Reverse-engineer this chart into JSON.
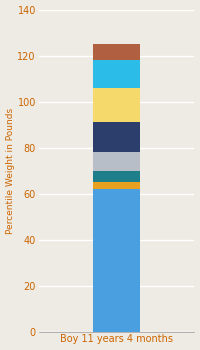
{
  "categories": [
    "Boy 11 years 4 months"
  ],
  "segments": [
    {
      "value": 62,
      "color": "#4A9FE0"
    },
    {
      "value": 3,
      "color": "#E8A020"
    },
    {
      "value": 5,
      "color": "#1E7F8A"
    },
    {
      "value": 8,
      "color": "#B8BEC8"
    },
    {
      "value": 13,
      "color": "#2C3E6B"
    },
    {
      "value": 15,
      "color": "#F5D96B"
    },
    {
      "value": 12,
      "color": "#2BBCE8"
    },
    {
      "value": 7,
      "color": "#B06040"
    }
  ],
  "ylabel": "Percentile Weight in Pounds",
  "ylim": [
    0,
    140
  ],
  "yticks": [
    0,
    20,
    40,
    60,
    80,
    100,
    120,
    140
  ],
  "background_color": "#EEEAE4",
  "xlabel_color": "#CC6600",
  "ylabel_color": "#CC6600",
  "tick_color": "#CC6600",
  "grid_color": "#FFFFFF",
  "bar_width": 0.3
}
